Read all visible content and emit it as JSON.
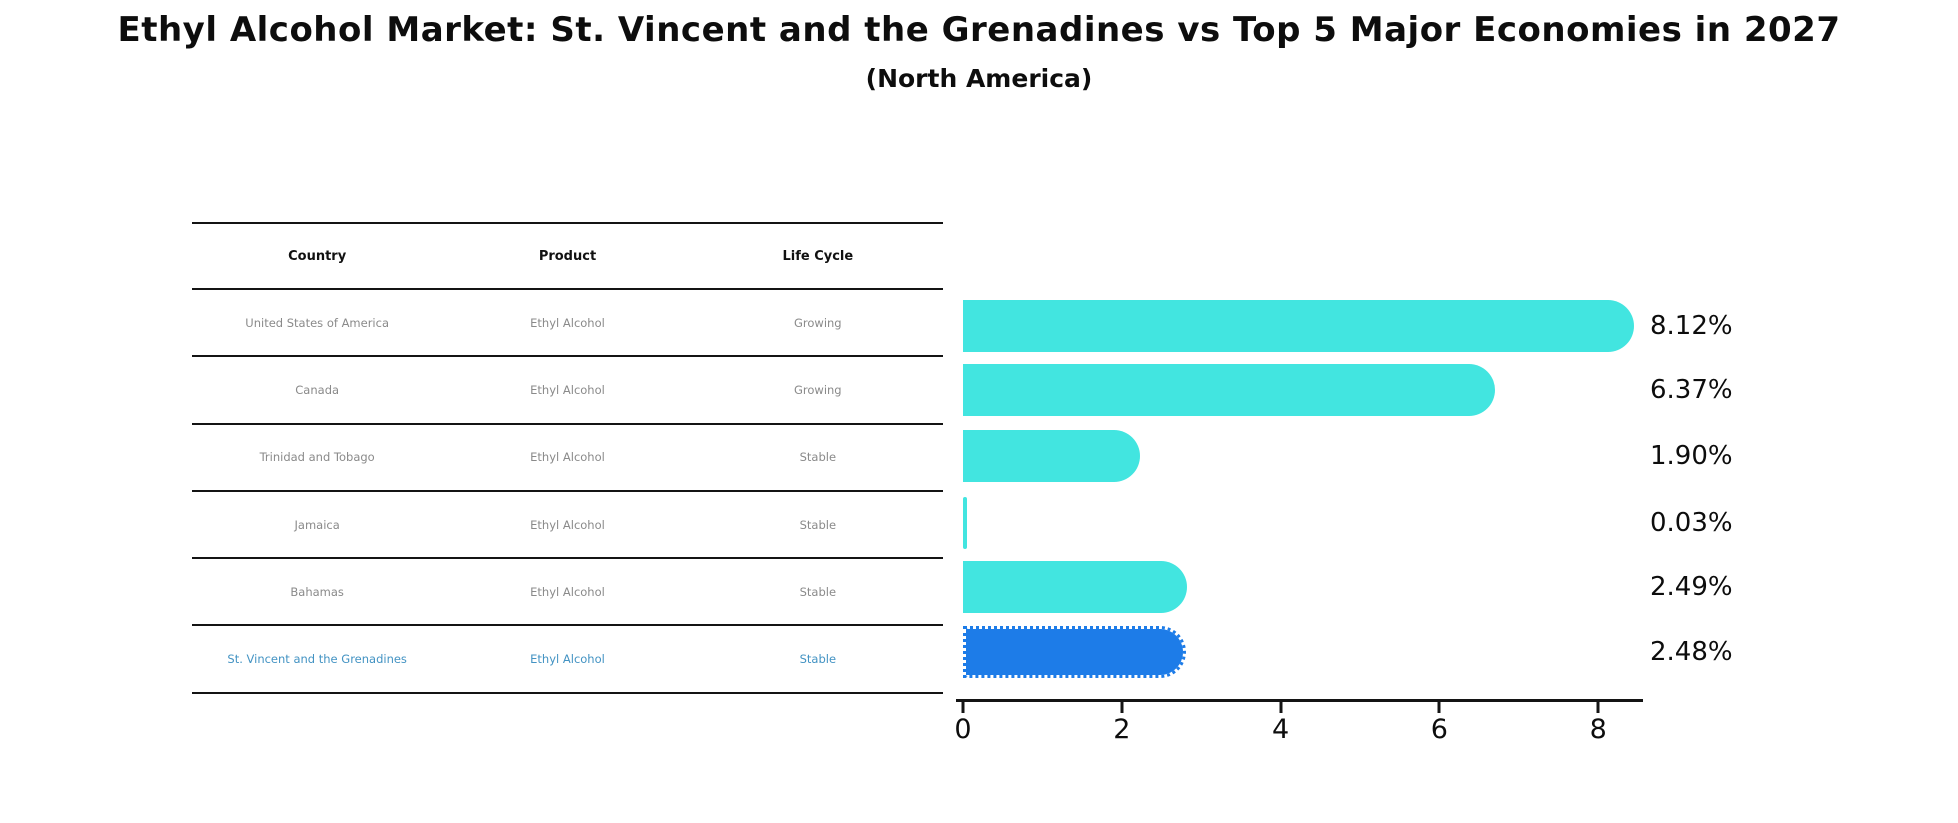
{
  "page": {
    "title": "Ethyl Alcohol Market: St. Vincent and the Grenadines vs Top 5 Major Economies in 2027",
    "subtitle": "(North America)"
  },
  "table": {
    "headers": [
      "Country",
      "Product",
      "Life Cycle"
    ],
    "rows": [
      {
        "country": "United States of America",
        "product": "Ethyl Alcohol",
        "life_cycle": "Growing"
      },
      {
        "country": "Canada",
        "product": "Ethyl Alcohol",
        "life_cycle": "Growing"
      },
      {
        "country": "Trinidad and Tobago",
        "product": "Ethyl Alcohol",
        "life_cycle": "Stable"
      },
      {
        "country": "Jamaica",
        "product": "Ethyl Alcohol",
        "life_cycle": "Stable"
      },
      {
        "country": "Bahamas",
        "product": "Ethyl Alcohol",
        "life_cycle": "Stable"
      },
      {
        "country": "St. Vincent and the Grenadines",
        "product": "Ethyl Alcohol",
        "life_cycle": "Stable"
      }
    ],
    "highlight_row_index": 5
  },
  "chart_data": {
    "type": "bar",
    "orientation": "horizontal",
    "title": "Ethyl Alcohol Market: St. Vincent and the Grenadines vs Top 5 Major Economies in 2027",
    "subtitle": "(North America)",
    "categories": [
      "United States of America",
      "Canada",
      "Trinidad and Tobago",
      "Jamaica",
      "Bahamas",
      "St. Vincent and the Grenadines"
    ],
    "values": [
      8.12,
      6.37,
      1.9,
      0.03,
      2.49,
      2.48
    ],
    "value_labels": [
      "8.12%",
      "6.37%",
      "1.90%",
      "0.03%",
      "2.49%",
      "2.48%"
    ],
    "xlabel": "",
    "ylabel": "",
    "xlim": [
      0,
      8.6
    ],
    "xticks": [
      "0",
      "2",
      "4",
      "6",
      "8"
    ],
    "grid": false,
    "legend": "none",
    "bar_color": "#42e5e0",
    "highlight_bar_color": "#1d7ce8",
    "highlight_index": 5,
    "highlight_bar_style": "dotted-border"
  },
  "colors": {
    "background": "#ffffff",
    "table_line": "#141414",
    "header_text": "#111111",
    "row_text": "#8a8a8a",
    "highlight_text": "#4393c3",
    "axis": "#141414",
    "bar": "#42e5e0",
    "highlight_bar": "#1d7ce8"
  }
}
